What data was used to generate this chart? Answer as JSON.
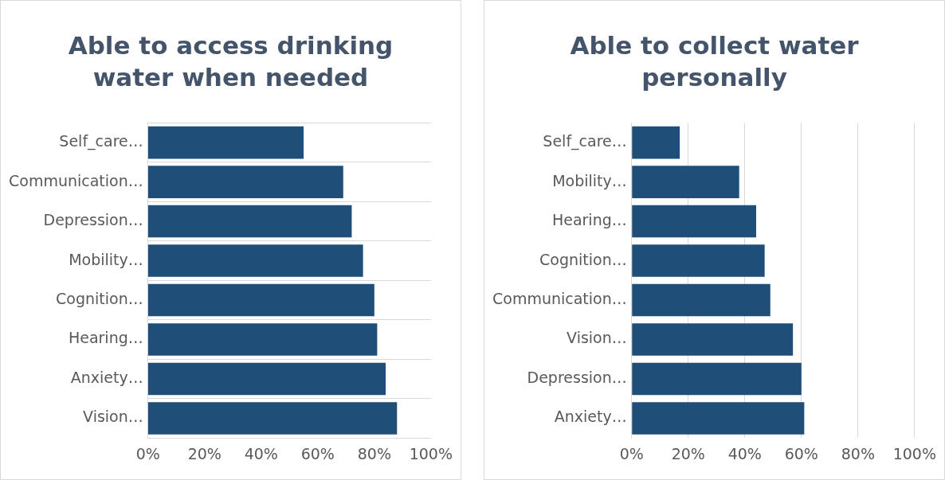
{
  "chart_data": [
    {
      "type": "bar",
      "orientation": "horizontal",
      "title": "Able to access drinking water when needed",
      "categories": [
        "Self_care…",
        "Communication…",
        "Depression…",
        "Mobility…",
        "Cognition…",
        "Hearing…",
        "Anxiety…",
        "Vision…"
      ],
      "values": [
        55,
        69,
        72,
        76,
        80,
        81,
        84,
        88
      ],
      "color": "#1f4e79",
      "xlim": [
        0,
        100
      ],
      "xticks": [
        {
          "value": 0,
          "label": "0%"
        },
        {
          "value": 20,
          "label": "20%"
        },
        {
          "value": 40,
          "label": "40%"
        },
        {
          "value": 60,
          "label": "60%"
        },
        {
          "value": 80,
          "label": "80%"
        },
        {
          "value": 100,
          "label": "100%"
        }
      ],
      "grid": "y",
      "legend": false
    },
    {
      "type": "bar",
      "orientation": "horizontal",
      "title": "Able to collect water personally",
      "categories": [
        "Self_care…",
        "Mobility…",
        "Hearing…",
        "Cognition…",
        "Communication…",
        "Vision…",
        "Depression…",
        "Anxiety…"
      ],
      "values": [
        17,
        38,
        44,
        47,
        49,
        57,
        60,
        61
      ],
      "color": "#1f4e79",
      "xlim": [
        0,
        100
      ],
      "xticks": [
        {
          "value": 0,
          "label": "0%"
        },
        {
          "value": 20,
          "label": "20%"
        },
        {
          "value": 40,
          "label": "40%"
        },
        {
          "value": 60,
          "label": "60%"
        },
        {
          "value": 80,
          "label": "80%"
        },
        {
          "value": 100,
          "label": "100%"
        }
      ],
      "grid": "x",
      "legend": false
    }
  ]
}
